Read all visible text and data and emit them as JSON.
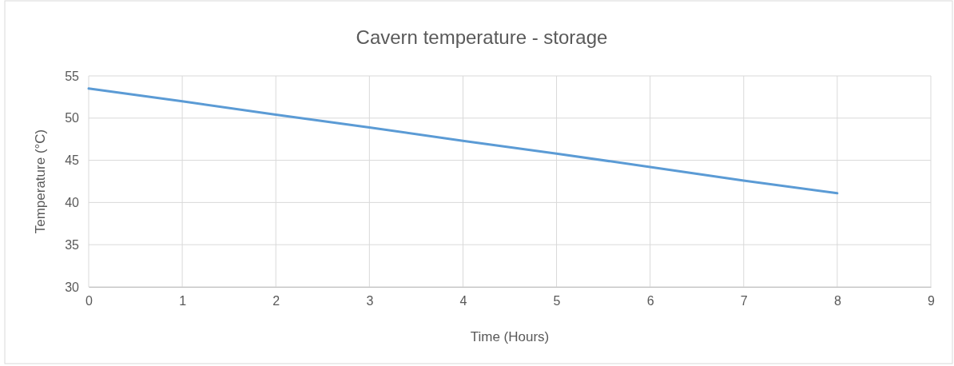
{
  "chart_data": {
    "type": "line",
    "title": "Cavern temperature - storage",
    "xlabel": "Time (Hours)",
    "ylabel": "Temperature (°C)",
    "x": [
      0,
      1,
      2,
      3,
      4,
      5,
      6,
      7,
      8
    ],
    "series": [
      {
        "color": "#5b9bd5",
        "values": [
          53.5,
          52.0,
          50.4,
          48.9,
          47.3,
          45.8,
          44.2,
          42.6,
          41.1
        ]
      }
    ],
    "xlim": [
      0,
      9
    ],
    "xticks": [
      0,
      1,
      2,
      3,
      4,
      5,
      6,
      7,
      8,
      9
    ],
    "ylim": [
      30,
      55
    ],
    "yticks": [
      30,
      35,
      40,
      45,
      50,
      55
    ],
    "grid": true,
    "marker": "none",
    "line_style": "solid"
  }
}
